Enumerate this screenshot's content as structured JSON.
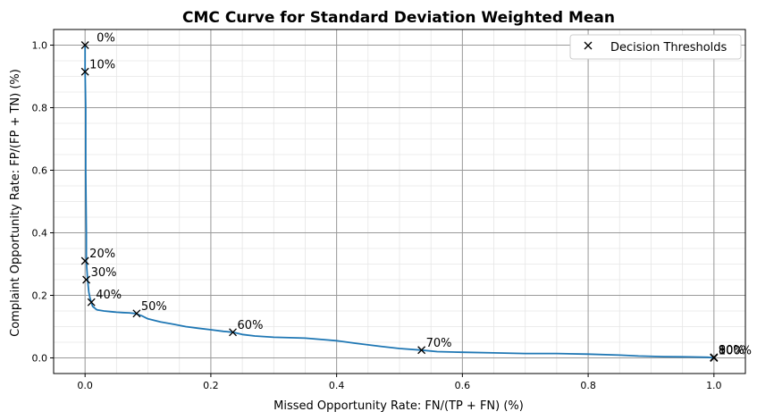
{
  "chart_data": {
    "type": "line",
    "title": "CMC Curve for Standard Deviation Weighted Mean",
    "xlabel": "Missed Opportunity Rate: FN/(TP + FN) (%)",
    "ylabel": "Complaint Opportunity Rate: FP/(FP + TN) (%)",
    "xlim": [
      -0.05,
      1.05
    ],
    "ylim": [
      -0.05,
      1.05
    ],
    "xticks": [
      0.0,
      0.2,
      0.4,
      0.6,
      0.8,
      1.0
    ],
    "xtick_labels": [
      "0.0",
      "0.2",
      "0.4",
      "0.6",
      "0.8",
      "1.0"
    ],
    "yticks": [
      0.0,
      0.2,
      0.4,
      0.6,
      0.8,
      1.0
    ],
    "ytick_labels": [
      "0.0",
      "0.2",
      "0.4",
      "0.6",
      "0.8",
      "1.0"
    ],
    "grid": "major and minor",
    "curve_color": "#1f77b4",
    "curve": {
      "x": [
        0.0,
        0.0,
        0.001,
        0.001,
        0.002,
        0.002,
        0.003,
        0.004,
        0.005,
        0.006,
        0.008,
        0.01,
        0.012,
        0.015,
        0.018,
        0.02,
        0.03,
        0.04,
        0.05,
        0.06,
        0.07,
        0.08,
        0.09,
        0.1,
        0.12,
        0.14,
        0.16,
        0.18,
        0.2,
        0.22,
        0.235,
        0.25,
        0.27,
        0.3,
        0.35,
        0.4,
        0.43,
        0.47,
        0.5,
        0.535,
        0.56,
        0.6,
        0.65,
        0.7,
        0.75,
        0.8,
        0.85,
        0.88,
        0.92,
        0.96,
        0.99,
        1.0
      ],
      "y": [
        1.0,
        0.92,
        0.8,
        0.6,
        0.4,
        0.31,
        0.28,
        0.25,
        0.23,
        0.21,
        0.19,
        0.178,
        0.165,
        0.16,
        0.155,
        0.153,
        0.15,
        0.148,
        0.146,
        0.145,
        0.144,
        0.142,
        0.135,
        0.125,
        0.115,
        0.108,
        0.1,
        0.095,
        0.09,
        0.085,
        0.082,
        0.075,
        0.07,
        0.066,
        0.063,
        0.055,
        0.047,
        0.037,
        0.03,
        0.025,
        0.02,
        0.018,
        0.016,
        0.014,
        0.014,
        0.012,
        0.009,
        0.006,
        0.004,
        0.003,
        0.002,
        0.0
      ]
    },
    "thresholds": [
      {
        "label": "0%",
        "x": 0.0,
        "y": 1.0
      },
      {
        "label": "10%",
        "x": 0.0,
        "y": 0.915
      },
      {
        "label": "20%",
        "x": 0.0,
        "y": 0.31
      },
      {
        "label": "30%",
        "x": 0.002,
        "y": 0.25
      },
      {
        "label": "40%",
        "x": 0.01,
        "y": 0.178
      },
      {
        "label": "50%",
        "x": 0.082,
        "y": 0.142
      },
      {
        "label": "60%",
        "x": 0.235,
        "y": 0.082
      },
      {
        "label": "70%",
        "x": 0.535,
        "y": 0.025
      },
      {
        "label": "80%",
        "x": 1.0,
        "y": 0.002
      },
      {
        "label": "90%",
        "x": 1.0,
        "y": 0.001
      },
      {
        "label": "100%",
        "x": 1.0,
        "y": 0.0
      }
    ],
    "legend": {
      "entries": [
        "Decision Thresholds"
      ],
      "placement": "top-right"
    }
  }
}
